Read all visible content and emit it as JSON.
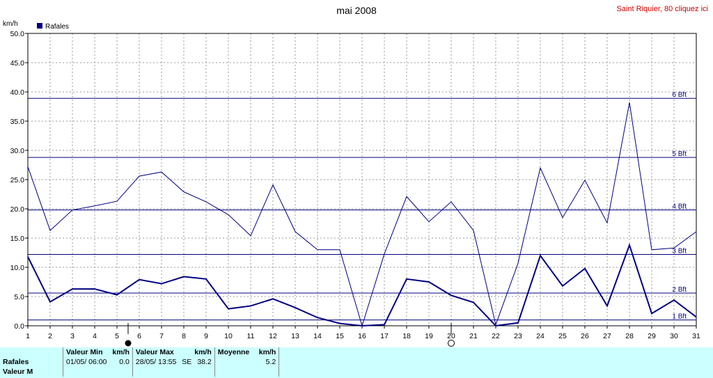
{
  "title": "mai 2008",
  "station_link": "Saint Riquier, 80 cliquez ici",
  "chart_data": {
    "type": "line",
    "title": "mai 2008",
    "ylabel": "km/h",
    "ylim": [
      0,
      50
    ],
    "yticks": [
      "0.0",
      "5.0",
      "10.0",
      "15.0",
      "20.0",
      "25.0",
      "30.0",
      "35.0",
      "40.0",
      "45.0",
      "50.0"
    ],
    "x": [
      1,
      2,
      3,
      4,
      5,
      6,
      7,
      8,
      9,
      10,
      11,
      12,
      13,
      14,
      15,
      16,
      17,
      18,
      19,
      20,
      21,
      22,
      23,
      24,
      25,
      26,
      27,
      28,
      29,
      30,
      31
    ],
    "grid": true,
    "legend": "top-left",
    "legend_label": "Rafales",
    "series": [
      {
        "name": "Rafales",
        "color": "#000080",
        "width": 2,
        "values": [
          11.8,
          4.1,
          6.3,
          6.3,
          5.3,
          7.9,
          7.2,
          8.4,
          8.0,
          2.9,
          3.4,
          4.6,
          3.1,
          1.4,
          0.4,
          0.0,
          0.2,
          8.0,
          7.5,
          5.2,
          4.0,
          0.0,
          0.5,
          12.0,
          6.8,
          9.8,
          3.4,
          13.8,
          2.1,
          4.4,
          1.5
        ]
      },
      {
        "color": "#000080",
        "width": 1,
        "values": [
          27.2,
          16.3,
          19.8,
          20.5,
          21.3,
          25.6,
          26.3,
          22.9,
          21.2,
          19.0,
          15.4,
          24.1,
          16.1,
          13.0,
          13.0,
          0.0,
          12.3,
          22.1,
          17.8,
          21.2,
          16.3,
          0.2,
          10.7,
          27.0,
          18.5,
          24.9,
          17.6,
          38.2,
          13.0,
          13.3,
          16.1
        ]
      }
    ],
    "beaufort_lines": [
      {
        "label": "1 Bft",
        "value": 1.0
      },
      {
        "label": "2 Bft",
        "value": 5.6
      },
      {
        "label": "3 Bft",
        "value": 12.2
      },
      {
        "label": "4 Bft",
        "value": 19.8
      },
      {
        "label": "5 Bft",
        "value": 28.8
      },
      {
        "label": "6 Bft",
        "value": 38.9
      }
    ],
    "moon_phases": [
      {
        "day": 5.5,
        "symbol": "full-moon-dot"
      },
      {
        "day": 20,
        "symbol": "open-circle"
      }
    ]
  },
  "summary": {
    "row_label": "Rafales",
    "row2_label": "Valeur M",
    "headers": {
      "min": "Valeur Min",
      "min_unit": "km/h",
      "max": "Valeur Max",
      "max_unit": "km/h",
      "avg": "Moyenne",
      "avg_unit": "km/h"
    },
    "min_date": "01/05/  06:00",
    "min_value": "0.0",
    "max_date": "28/05/  13:55",
    "max_dir": "SE",
    "max_value": "38.2",
    "avg_value": "5.2"
  }
}
